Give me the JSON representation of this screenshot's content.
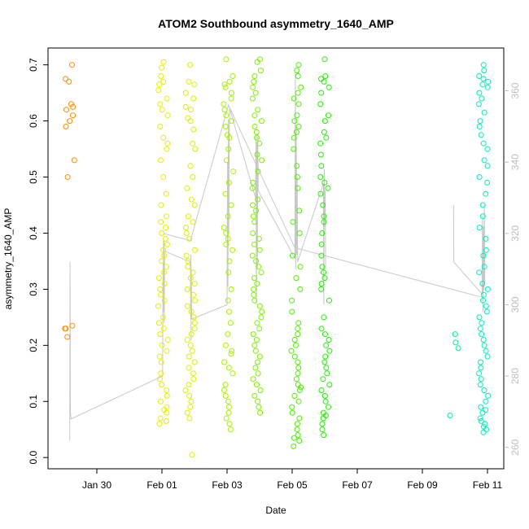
{
  "chart_data": {
    "type": "scatter",
    "title": "ATOM2 Southbound asymmetry_1640_AMP",
    "xlabel": "Date",
    "ylabel": "asymmetry_1640_AMP",
    "xlim": [
      "2025-01-28T12:00",
      "2025-02-11T12:00"
    ],
    "ylim": [
      -0.02,
      0.73
    ],
    "y2lim": [
      254,
      372
    ],
    "x_ticks": [
      {
        "date": "2025-01-30",
        "label": "Jan 30"
      },
      {
        "date": "2025-02-01",
        "label": "Feb 01"
      },
      {
        "date": "2025-02-03",
        "label": "Feb 03"
      },
      {
        "date": "2025-02-05",
        "label": "Feb 05"
      },
      {
        "date": "2025-02-07",
        "label": "Feb 07"
      },
      {
        "date": "2025-02-09",
        "label": "Feb 09"
      },
      {
        "date": "2025-02-11",
        "label": "Feb 11"
      }
    ],
    "y_ticks": [
      0.0,
      0.1,
      0.2,
      0.3,
      0.4,
      0.5,
      0.6,
      0.7
    ],
    "y_tick_labels": [
      "0.0",
      "0.1",
      "0.2",
      "0.3",
      "0.4",
      "0.5",
      "0.6",
      "0.7"
    ],
    "y2_ticks": [
      260,
      280,
      300,
      320,
      340,
      360
    ],
    "y2_tick_labels": [
      "260",
      "280",
      "300",
      "320",
      "340",
      "360"
    ],
    "grid": false,
    "legend": "none",
    "point_style": "open circles colored by date (orange → yellow → green → cyan)",
    "line_color": "#c8c8c8",
    "clusters": [
      {
        "date": "2025-01-29T04:00",
        "color": "#ff8c00",
        "values": [
          0.7,
          0.675,
          0.67,
          0.625,
          0.62,
          0.61,
          0.59,
          0.53,
          0.5,
          0.235,
          0.23,
          0.215,
          0.63,
          0.6,
          0.23
        ]
      },
      {
        "date": "2025-02-01T00:45",
        "color": "#e6ee00",
        "values": [
          0.705,
          0.695,
          0.68,
          0.67,
          0.665,
          0.655,
          0.64,
          0.63,
          0.62,
          0.61,
          0.59,
          0.57,
          0.56,
          0.55,
          0.53,
          0.5,
          0.47,
          0.45,
          0.43,
          0.42,
          0.41,
          0.4,
          0.39,
          0.38,
          0.37,
          0.36,
          0.35,
          0.34,
          0.33,
          0.32,
          0.31,
          0.3,
          0.29,
          0.28,
          0.27,
          0.25,
          0.24,
          0.23,
          0.22,
          0.21,
          0.2,
          0.19,
          0.18,
          0.17,
          0.15,
          0.14,
          0.13,
          0.12,
          0.11,
          0.1,
          0.09,
          0.085,
          0.08,
          0.07,
          0.065,
          0.06
        ]
      },
      {
        "date": "2025-02-01T21:00",
        "color": "#d9f000",
        "values": [
          0.7,
          0.67,
          0.665,
          0.65,
          0.64,
          0.625,
          0.62,
          0.605,
          0.6,
          0.585,
          0.56,
          0.55,
          0.52,
          0.5,
          0.48,
          0.46,
          0.45,
          0.43,
          0.42,
          0.41,
          0.4,
          0.39,
          0.37,
          0.36,
          0.35,
          0.34,
          0.33,
          0.32,
          0.31,
          0.3,
          0.29,
          0.28,
          0.27,
          0.26,
          0.25,
          0.24,
          0.23,
          0.22,
          0.21,
          0.2,
          0.19,
          0.18,
          0.17,
          0.16,
          0.15,
          0.14,
          0.13,
          0.12,
          0.11,
          0.1,
          0.09,
          0.08,
          0.07,
          0.005
        ]
      },
      {
        "date": "2025-02-03T01:00",
        "color": "#a6f000",
        "values": [
          0.71,
          0.68,
          0.67,
          0.665,
          0.66,
          0.65,
          0.64,
          0.63,
          0.62,
          0.61,
          0.6,
          0.59,
          0.575,
          0.57,
          0.55,
          0.53,
          0.51,
          0.49,
          0.47,
          0.45,
          0.43,
          0.41,
          0.4,
          0.39,
          0.38,
          0.37,
          0.35,
          0.33,
          0.3,
          0.28,
          0.26,
          0.24,
          0.22,
          0.2,
          0.19,
          0.185,
          0.17,
          0.16,
          0.15,
          0.13,
          0.12,
          0.11,
          0.1,
          0.09,
          0.08,
          0.07,
          0.06,
          0.05
        ]
      },
      {
        "date": "2025-02-03T22:00",
        "color": "#7df000",
        "values": [
          0.71,
          0.705,
          0.69,
          0.68,
          0.67,
          0.66,
          0.65,
          0.64,
          0.62,
          0.61,
          0.6,
          0.59,
          0.58,
          0.57,
          0.56,
          0.54,
          0.53,
          0.51,
          0.49,
          0.48,
          0.46,
          0.45,
          0.44,
          0.43,
          0.42,
          0.4,
          0.39,
          0.38,
          0.37,
          0.36,
          0.35,
          0.34,
          0.33,
          0.32,
          0.31,
          0.3,
          0.29,
          0.28,
          0.27,
          0.26,
          0.25,
          0.24,
          0.23,
          0.22,
          0.21,
          0.2,
          0.19,
          0.18,
          0.17,
          0.16,
          0.15,
          0.14,
          0.13,
          0.12,
          0.11,
          0.1,
          0.09,
          0.08
        ]
      },
      {
        "date": "2025-02-05T03:00",
        "color": "#4cf000",
        "values": [
          0.7,
          0.69,
          0.68,
          0.66,
          0.65,
          0.64,
          0.63,
          0.61,
          0.6,
          0.59,
          0.58,
          0.57,
          0.55,
          0.52,
          0.5,
          0.48,
          0.44,
          0.42,
          0.4,
          0.36,
          0.34,
          0.32,
          0.3,
          0.28,
          0.26,
          0.24,
          0.23,
          0.22,
          0.21,
          0.2,
          0.19,
          0.18,
          0.17,
          0.16,
          0.15,
          0.14,
          0.13,
          0.125,
          0.12,
          0.11,
          0.1,
          0.09,
          0.08,
          0.07,
          0.06,
          0.05,
          0.04,
          0.035,
          0.03,
          0.02
        ]
      },
      {
        "date": "2025-02-06T00:00",
        "color": "#1ff000",
        "values": [
          0.71,
          0.68,
          0.675,
          0.67,
          0.66,
          0.65,
          0.63,
          0.61,
          0.6,
          0.58,
          0.57,
          0.56,
          0.54,
          0.52,
          0.5,
          0.49,
          0.48,
          0.47,
          0.45,
          0.43,
          0.42,
          0.4,
          0.38,
          0.36,
          0.34,
          0.33,
          0.32,
          0.31,
          0.3,
          0.28,
          0.25,
          0.23,
          0.22,
          0.21,
          0.2,
          0.19,
          0.18,
          0.17,
          0.16,
          0.15,
          0.14,
          0.13,
          0.12,
          0.11,
          0.1,
          0.09,
          0.08,
          0.075,
          0.07,
          0.06,
          0.05,
          0.04
        ]
      },
      {
        "date": "2025-02-10T00:00",
        "color": "#00ee99",
        "values": [
          0.22,
          0.205,
          0.195,
          0.075
        ]
      },
      {
        "date": "2025-02-10T21:00",
        "color": "#00eebb",
        "values": [
          0.7,
          0.69,
          0.68,
          0.675,
          0.67,
          0.665,
          0.66,
          0.65,
          0.64,
          0.63,
          0.615,
          0.6,
          0.59,
          0.575,
          0.56,
          0.55,
          0.53,
          0.52,
          0.5,
          0.49,
          0.47,
          0.45,
          0.43,
          0.41,
          0.39,
          0.37,
          0.36,
          0.34,
          0.33,
          0.31,
          0.3,
          0.29,
          0.28,
          0.27,
          0.26,
          0.25,
          0.24,
          0.23,
          0.22,
          0.21,
          0.2,
          0.19,
          0.18,
          0.17,
          0.16,
          0.15,
          0.14,
          0.13,
          0.12,
          0.11,
          0.1,
          0.09,
          0.085,
          0.08,
          0.07,
          0.065,
          0.06,
          0.055,
          0.05,
          0.045
        ]
      }
    ],
    "secondary_series": {
      "axis": "right",
      "segments": [
        [
          [
            "2025-01-29T04:00",
            262
          ],
          [
            "2025-01-29T04:15",
            312
          ],
          [
            "2025-01-29T04:30",
            270
          ],
          [
            "2025-01-29T05:00",
            268
          ],
          [
            "2025-02-01T00:30",
            280
          ],
          [
            "2025-02-01T00:40",
            296
          ],
          [
            "2025-02-01T00:50",
            312
          ],
          [
            "2025-02-01T01:00",
            300
          ],
          [
            "2025-02-01T01:10",
            318
          ],
          [
            "2025-02-01T01:20",
            298
          ],
          [
            "2025-02-01T01:30",
            318
          ],
          [
            "2025-02-01T01:40",
            295
          ],
          [
            "2025-02-01T02:00",
            315
          ],
          [
            "2025-02-01T21:00",
            312
          ],
          [
            "2025-02-01T21:10",
            296
          ],
          [
            "2025-02-01T21:20",
            314
          ],
          [
            "2025-02-01T21:30",
            290
          ],
          [
            "2025-02-01T21:40",
            310
          ],
          [
            "2025-02-01T21:50",
            300
          ],
          [
            "2025-02-01T22:00",
            296
          ],
          [
            "2025-02-03T00:00",
            300
          ],
          [
            "2025-02-03T00:20",
            340
          ],
          [
            "2025-02-03T00:40",
            305
          ],
          [
            "2025-02-03T01:00",
            352
          ],
          [
            "2025-02-03T01:20",
            320
          ],
          [
            "2025-02-03T01:40",
            350
          ],
          [
            "2025-02-03T02:00",
            355
          ],
          [
            "2025-02-03T21:00",
            330
          ],
          [
            "2025-02-03T21:20",
            348
          ],
          [
            "2025-02-03T21:40",
            300
          ],
          [
            "2025-02-03T22:00",
            345
          ],
          [
            "2025-02-03T22:20",
            310
          ],
          [
            "2025-02-03T22:40",
            348
          ],
          [
            "2025-02-03T23:00",
            332
          ],
          [
            "2025-02-05T02:00",
            313
          ],
          [
            "2025-02-05T02:20",
            365
          ],
          [
            "2025-02-05T02:40",
            310
          ],
          [
            "2025-02-05T03:00",
            350
          ],
          [
            "2025-02-05T03:20",
            314
          ],
          [
            "2025-02-05T03:40",
            336
          ],
          [
            "2025-02-05T04:00",
            312
          ],
          [
            "2025-02-05T23:00",
            334
          ],
          [
            "2025-02-05T23:20",
            300
          ],
          [
            "2025-02-05T23:40",
            338
          ],
          [
            "2025-02-06T00:00",
            322
          ],
          [
            "2025-02-06T00:20",
            332
          ],
          [
            "2025-02-06T00:40",
            310
          ]
        ],
        [
          [
            "2025-02-09T23:00",
            328
          ],
          [
            "2025-02-09T23:10",
            312
          ],
          [
            "2025-02-10T20:00",
            303
          ],
          [
            "2025-02-10T20:20",
            325
          ],
          [
            "2025-02-10T20:40",
            298
          ],
          [
            "2025-02-10T21:00",
            322
          ],
          [
            "2025-02-10T21:20",
            304
          ],
          [
            "2025-02-10T21:40",
            328
          ],
          [
            "2025-02-10T22:00",
            306
          ]
        ],
        [
          [
            "2025-02-01T01:00",
            320
          ],
          [
            "2025-02-01T21:00",
            318
          ],
          [
            "2025-02-03T01:00",
            356
          ],
          [
            "2025-02-05T02:00",
            316
          ],
          [
            "2025-02-10T21:00",
            302
          ]
        ]
      ]
    }
  }
}
